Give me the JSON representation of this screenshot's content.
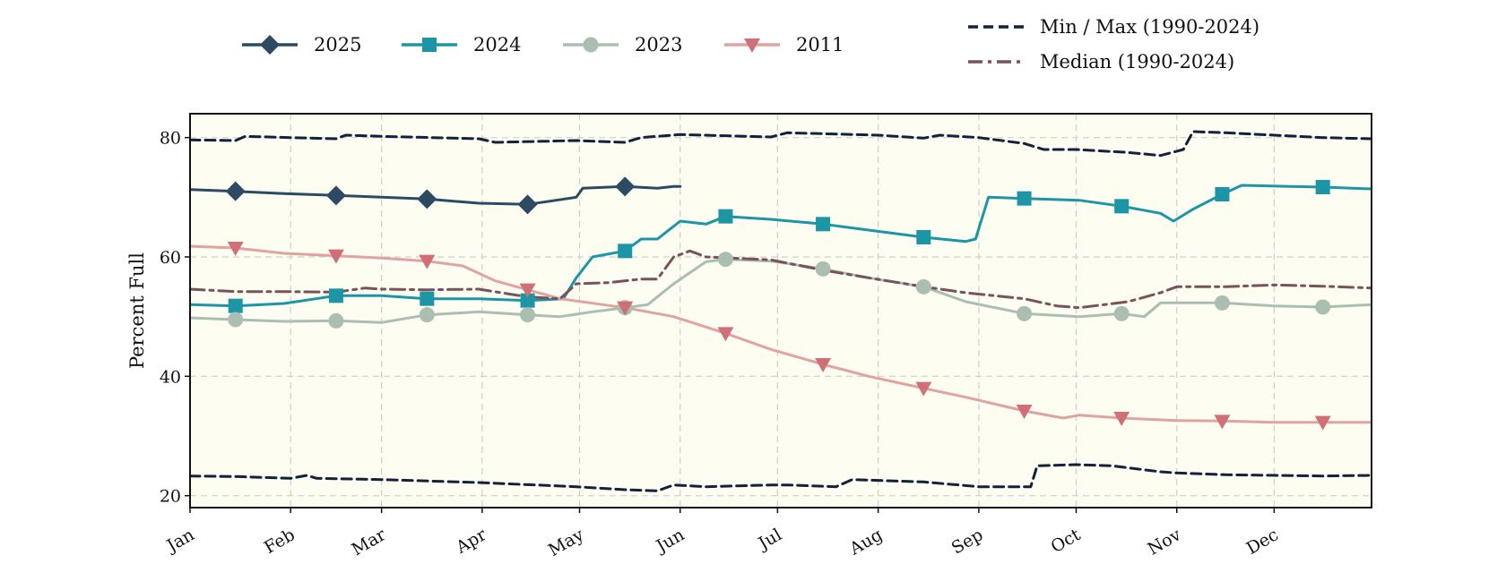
{
  "chart_data": {
    "type": "line",
    "title": "",
    "xlabel": "",
    "ylabel": "Percent Full",
    "xlim": [
      1,
      365
    ],
    "ylim": [
      18,
      84
    ],
    "yticks": [
      20,
      40,
      60,
      80
    ],
    "month_ticks": [
      {
        "label": "Jan",
        "day": 1
      },
      {
        "label": "Feb",
        "day": 32
      },
      {
        "label": "Mar",
        "day": 60
      },
      {
        "label": "Apr",
        "day": 91
      },
      {
        "label": "May",
        "day": 121
      },
      {
        "label": "Jun",
        "day": 152
      },
      {
        "label": "Jul",
        "day": 182
      },
      {
        "label": "Aug",
        "day": 213
      },
      {
        "label": "Sep",
        "day": 244
      },
      {
        "label": "Oct",
        "day": 274
      },
      {
        "label": "Nov",
        "day": 305
      },
      {
        "label": "Dec",
        "day": 335
      }
    ],
    "grid": true,
    "legend_position": "top",
    "band_color": "#fdfdf2",
    "series": [
      {
        "name": "2025",
        "color": "#2d4a63",
        "marker": "diamond",
        "line_style": "solid",
        "x": [
          1,
          15,
          30,
          46,
          60,
          74,
          90,
          105,
          110,
          120,
          122,
          135,
          145,
          150,
          152
        ],
        "y": [
          71.3,
          71.0,
          70.6,
          70.3,
          70.0,
          69.7,
          69.0,
          68.8,
          69.2,
          70.0,
          71.5,
          71.8,
          71.5,
          71.8,
          71.8
        ]
      },
      {
        "name": "2024",
        "color": "#1c95a5",
        "marker": "square",
        "line_style": "solid",
        "x": [
          1,
          15,
          30,
          46,
          60,
          74,
          90,
          105,
          116,
          120,
          125,
          135,
          140,
          145,
          152,
          160,
          166,
          180,
          196,
          210,
          227,
          240,
          243,
          247,
          258,
          275,
          288,
          300,
          304,
          310,
          319,
          325,
          340,
          350,
          365
        ],
        "y": [
          52.0,
          51.8,
          52.2,
          53.5,
          53.5,
          53.0,
          53.0,
          52.7,
          53.0,
          56.5,
          60.0,
          61.0,
          63.0,
          63.0,
          66.0,
          65.5,
          66.8,
          66.3,
          65.5,
          64.5,
          63.3,
          62.6,
          63.0,
          70.0,
          69.8,
          69.5,
          68.5,
          67.3,
          66.0,
          68.0,
          70.5,
          72.0,
          71.8,
          71.7,
          71.4
        ]
      },
      {
        "name": "2023",
        "color": "#aabfb1",
        "marker": "circle",
        "line_style": "solid",
        "x": [
          1,
          15,
          30,
          46,
          60,
          74,
          90,
          105,
          115,
          125,
          135,
          142,
          150,
          160,
          166,
          180,
          196,
          210,
          227,
          240,
          258,
          275,
          288,
          295,
          300,
          319,
          335,
          350,
          365
        ],
        "y": [
          49.8,
          49.5,
          49.2,
          49.3,
          49.0,
          50.3,
          50.8,
          50.3,
          50.0,
          50.8,
          51.5,
          52.0,
          55.5,
          59.2,
          59.6,
          59.3,
          58.0,
          56.5,
          55.0,
          52.5,
          50.5,
          50.0,
          50.5,
          50.0,
          52.3,
          52.3,
          51.8,
          51.6,
          52.0
        ]
      },
      {
        "name": "2011",
        "color": "#e0a39f",
        "marker_color": "#d16f76",
        "marker": "triangle-down",
        "line_style": "solid",
        "x": [
          1,
          15,
          30,
          46,
          60,
          74,
          85,
          95,
          105,
          115,
          135,
          150,
          166,
          180,
          196,
          210,
          227,
          240,
          258,
          270,
          275,
          288,
          305,
          319,
          335,
          350,
          365
        ],
        "y": [
          61.8,
          61.5,
          60.6,
          60.2,
          59.8,
          59.3,
          58.5,
          56.0,
          54.5,
          53.0,
          51.5,
          50.0,
          47.2,
          44.5,
          42.0,
          40.0,
          38.0,
          36.5,
          34.2,
          33.0,
          33.5,
          33.0,
          32.6,
          32.5,
          32.3,
          32.3,
          32.3
        ]
      },
      {
        "name": "Min / Max (1990-2024)",
        "color": "#14213a",
        "marker": "none",
        "line_style": "dashed",
        "upper": {
          "x": [
            1,
            15,
            18,
            32,
            46,
            49,
            60,
            90,
            95,
            120,
            135,
            140,
            152,
            180,
            185,
            213,
            227,
            232,
            244,
            258,
            264,
            274,
            290,
            300,
            307,
            310,
            320,
            335,
            350,
            365
          ],
          "y": [
            79.6,
            79.5,
            80.2,
            80.0,
            79.8,
            80.4,
            80.2,
            79.8,
            79.2,
            79.5,
            79.2,
            80.0,
            80.5,
            80.1,
            80.8,
            80.4,
            79.9,
            80.4,
            80.0,
            79.0,
            78.0,
            78.0,
            77.5,
            77.0,
            78.0,
            81.0,
            80.8,
            80.4,
            80.0,
            79.8
          ]
        },
        "lower": {
          "x": [
            1,
            15,
            32,
            37,
            40,
            60,
            90,
            120,
            135,
            145,
            150,
            160,
            180,
            185,
            200,
            205,
            227,
            244,
            260,
            262,
            274,
            285,
            300,
            305,
            320,
            350,
            365
          ],
          "y": [
            23.3,
            23.2,
            22.9,
            23.4,
            22.9,
            22.7,
            22.2,
            21.5,
            21.0,
            20.8,
            21.8,
            21.5,
            21.8,
            21.8,
            21.5,
            22.7,
            22.3,
            21.5,
            21.5,
            25.0,
            25.2,
            25.0,
            24.0,
            23.8,
            23.5,
            23.3,
            23.4
          ]
        }
      },
      {
        "name": "Median (1990-2024)",
        "color": "#7a525a",
        "marker": "none",
        "line_style": "dashdot",
        "x": [
          1,
          15,
          30,
          46,
          55,
          60,
          74,
          90,
          105,
          115,
          120,
          130,
          140,
          145,
          150,
          155,
          160,
          180,
          196,
          210,
          227,
          240,
          258,
          268,
          275,
          290,
          300,
          305,
          320,
          335,
          350,
          365
        ],
        "y": [
          54.6,
          54.2,
          54.2,
          54.1,
          54.8,
          54.6,
          54.5,
          54.6,
          53.3,
          53.0,
          55.5,
          55.7,
          56.3,
          56.3,
          60.0,
          61.0,
          60.0,
          59.5,
          57.8,
          56.5,
          55.0,
          54.0,
          53.0,
          51.8,
          51.5,
          52.5,
          54.0,
          55.0,
          55.0,
          55.3,
          55.1,
          54.8
        ]
      }
    ],
    "markers_at_day": [
      15,
      46,
      74,
      105,
      135,
      166,
      196,
      227,
      258,
      288,
      319,
      350
    ]
  }
}
